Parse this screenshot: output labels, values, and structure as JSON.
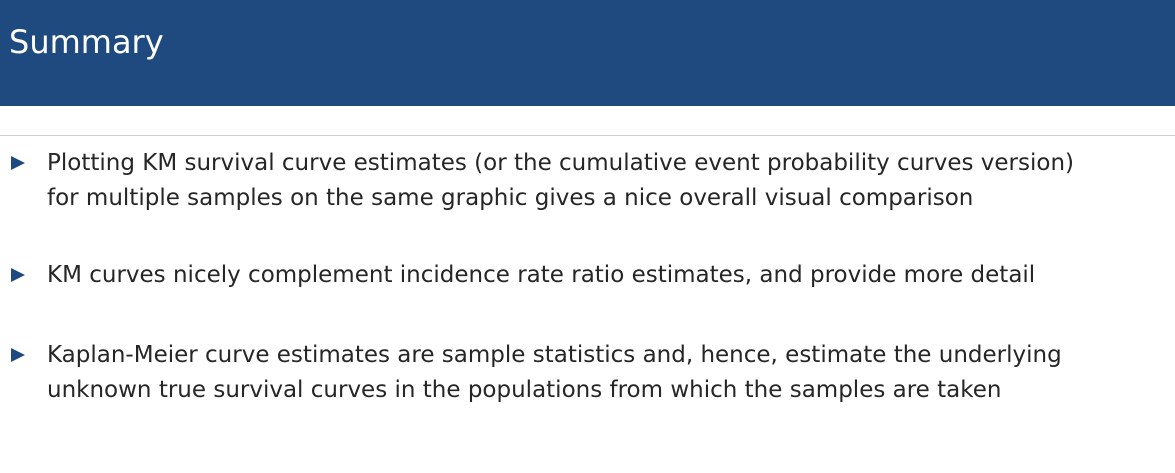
{
  "slide": {
    "title": "Summary",
    "bullets": [
      {
        "lines": [
          "Plotting KM survival curve estimates (or the cumulative event probability curves version)",
          "for multiple samples on the same graphic gives a nice overall visual comparison"
        ]
      },
      {
        "lines": [
          "KM curves nicely complement incidence rate ratio estimates, and provide more detail"
        ]
      },
      {
        "lines": [
          "Kaplan-Meier curve estimates are sample statistics and, hence, estimate the underlying",
          "unknown true survival curves in the populations from which the samples are taken"
        ]
      }
    ]
  },
  "colors": {
    "title_bar": "#1f4a80",
    "title_text": "#ffffff",
    "bullet_marker": "#1f4a80",
    "body_text": "#262626",
    "divider": "#cfcfcf"
  },
  "icons": {
    "bullet_marker": "right-pointing-triangle"
  }
}
